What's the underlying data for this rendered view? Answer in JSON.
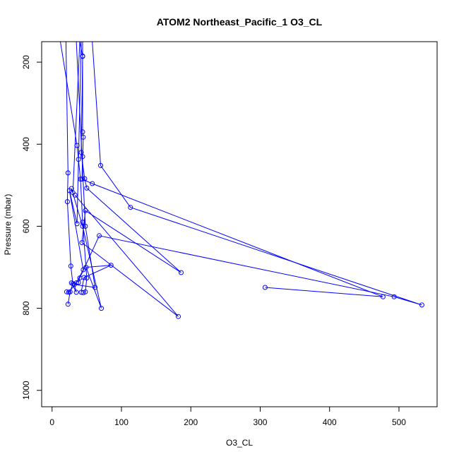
{
  "chart_data": {
    "type": "line",
    "title": "ATOM2 Northeast_Pacific_1 O3_CL",
    "xlabel": "O3_CL",
    "ylabel": "Pressure (mbar)",
    "xlim": [
      -15,
      555
    ],
    "ylim": [
      1040,
      150
    ],
    "y_reversed": true,
    "x_ticks": [
      0,
      100,
      200,
      300,
      400,
      500
    ],
    "y_ticks": [
      200,
      400,
      600,
      800,
      1000
    ],
    "grid": false,
    "series_color": "#0000ff",
    "marker": "open-circle",
    "series": [
      {
        "points": [
          [
            12,
            150
          ],
          [
            36,
            403
          ],
          [
            38,
            437
          ],
          [
            41,
            485
          ],
          [
            44,
            590
          ],
          [
            50,
            726
          ],
          [
            48,
            760
          ],
          [
            45,
            762
          ]
        ]
      },
      {
        "points": [
          [
            20,
            150
          ],
          [
            23,
            470
          ],
          [
            22,
            540
          ],
          [
            27,
            697
          ],
          [
            30,
            740
          ],
          [
            26,
            760
          ],
          [
            23,
            790
          ]
        ]
      },
      {
        "points": [
          [
            44,
            150
          ],
          [
            44,
            185
          ],
          [
            44,
            370
          ],
          [
            45,
            383
          ],
          [
            44,
            430
          ],
          [
            43,
            485
          ],
          [
            58,
            496
          ],
          [
            477,
            772
          ],
          [
            307,
            749
          ]
        ]
      },
      {
        "points": [
          [
            58,
            150
          ],
          [
            70,
            452
          ],
          [
            113,
            554
          ],
          [
            533,
            792
          ],
          [
            493,
            772
          ],
          [
            68,
            623
          ],
          [
            40,
            726
          ],
          [
            38,
            737
          ]
        ]
      },
      {
        "points": [
          [
            40,
            150
          ],
          [
            44,
            186
          ],
          [
            42,
            420
          ],
          [
            47,
            484
          ],
          [
            50,
            507
          ],
          [
            186,
            713
          ],
          [
            48,
            562
          ],
          [
            43,
            640
          ],
          [
            182,
            820
          ],
          [
            33,
            524
          ]
        ]
      },
      {
        "points": [
          [
            40,
            150
          ],
          [
            30,
            518
          ],
          [
            28,
            508
          ],
          [
            44,
            600
          ],
          [
            71,
            800
          ],
          [
            49,
            700
          ],
          [
            85,
            695
          ],
          [
            46,
            725
          ],
          [
            42,
            761
          ]
        ]
      },
      {
        "points": [
          [
            42,
            150
          ],
          [
            36,
            594
          ],
          [
            25,
            513
          ],
          [
            45,
            706
          ],
          [
            35,
            738
          ],
          [
            24,
            761
          ],
          [
            21,
            760
          ]
        ]
      },
      {
        "points": [
          [
            35,
            150
          ],
          [
            48,
            600
          ],
          [
            62,
            749
          ],
          [
            32,
            742
          ],
          [
            35,
            761
          ],
          [
            28,
            738
          ]
        ]
      }
    ]
  }
}
